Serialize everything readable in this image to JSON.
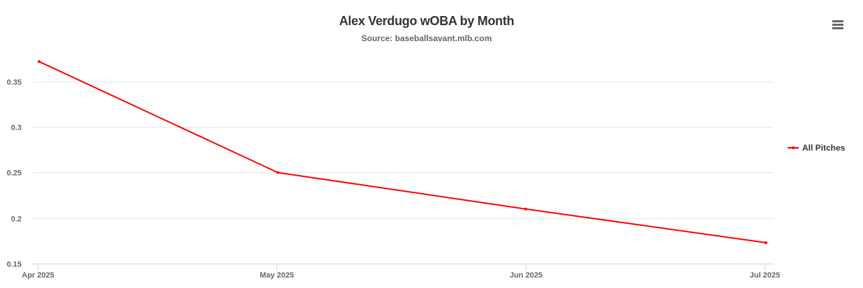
{
  "header": {
    "title": "Alex Verdugo wOBA by Month",
    "subtitle": "Source: baseballsavant.mlb.com",
    "menu_icon": "hamburger-menu-icon"
  },
  "colors": {
    "series": "#ff0000",
    "grid": "#e6e6e6",
    "axis": "#ccd6eb",
    "text": "#666666"
  },
  "legend": {
    "items": [
      {
        "label": "All Pitches",
        "color": "#ff0000"
      }
    ]
  },
  "chart_data": {
    "type": "line",
    "title": "Alex Verdugo wOBA by Month",
    "subtitle": "Source: baseballsavant.mlb.com",
    "xlabel": "",
    "ylabel": "",
    "categories": [
      "Apr 2025",
      "May 2025",
      "Jun 2025",
      "Jul 2025"
    ],
    "series": [
      {
        "name": "All Pitches",
        "color": "#ff0000",
        "values": [
          0.372,
          0.25,
          0.21,
          0.173
        ]
      }
    ],
    "yticks": [
      "0.15",
      "0.2",
      "0.25",
      "0.3",
      "0.35"
    ],
    "ylim": [
      0.15,
      0.372
    ],
    "grid": true,
    "legend_position": "right"
  }
}
